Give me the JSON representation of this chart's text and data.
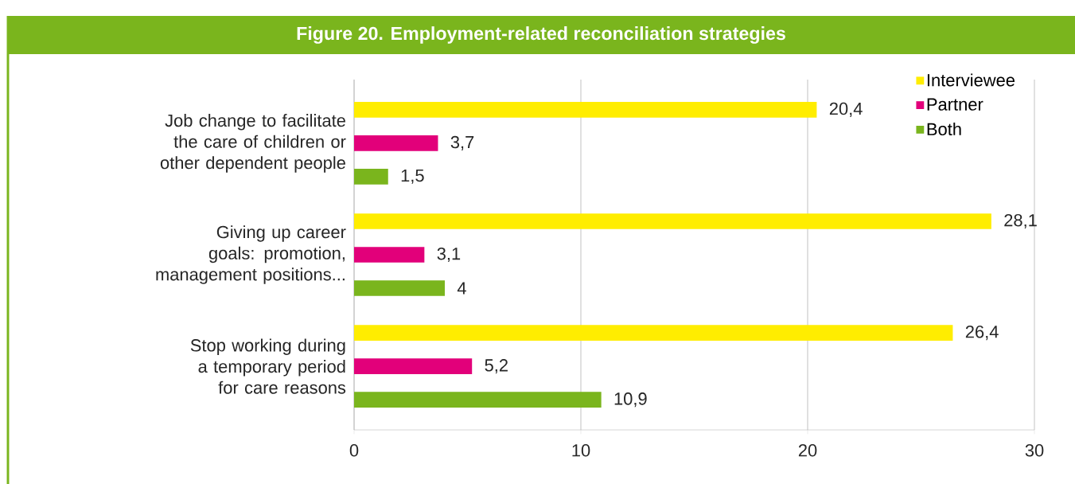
{
  "chart_data": {
    "type": "bar",
    "orientation": "horizontal",
    "title": "Figure 20. Employment-related reconciliation strategies",
    "categories": [
      "Job change to facilitate the care of children or other dependent people",
      "Giving up career goals: promotion, management positions...",
      "Stop working during a temporary period for care reasons"
    ],
    "series": [
      {
        "name": "Interviewee",
        "color": "#ffed00",
        "values": [
          20.4,
          28.1,
          26.4
        ],
        "value_labels": [
          "20,4",
          "28,1",
          "26,4"
        ]
      },
      {
        "name": "Partner",
        "color": "#e2007a",
        "values": [
          3.7,
          3.1,
          5.2
        ],
        "value_labels": [
          "3,7",
          "3,1",
          "5,2"
        ]
      },
      {
        "name": "Both",
        "color": "#7ab51d",
        "values": [
          1.5,
          4,
          10.9
        ],
        "value_labels": [
          "1,5",
          "4",
          "10,9"
        ]
      }
    ],
    "xlim": [
      0,
      30
    ],
    "xticks": [
      0,
      10,
      20,
      30
    ],
    "grid": "x",
    "legend": "top right"
  }
}
